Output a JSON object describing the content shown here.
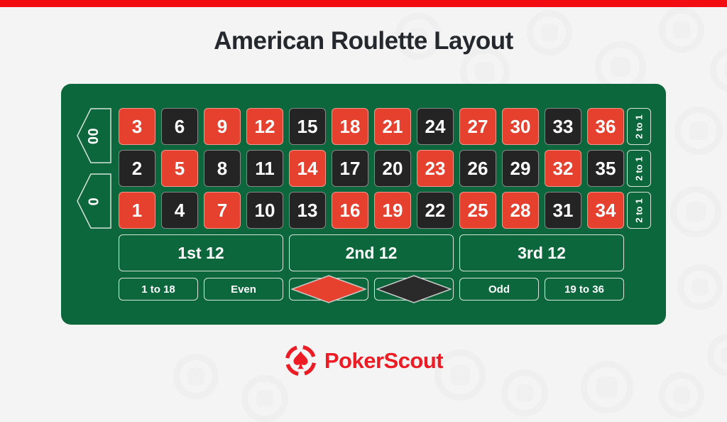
{
  "page": {
    "title": "American Roulette Layout",
    "accent_color": "#f20d12",
    "background_color": "#f4f4f4"
  },
  "table": {
    "felt_color": "#0d673c",
    "red_color": "#e5412e",
    "black_color": "#242424",
    "zero_pockets": [
      {
        "label": "00"
      },
      {
        "label": "0"
      }
    ],
    "grid": {
      "rows": [
        [
          {
            "n": "3",
            "c": "red"
          },
          {
            "n": "6",
            "c": "black"
          },
          {
            "n": "9",
            "c": "red"
          },
          {
            "n": "12",
            "c": "red"
          },
          {
            "n": "15",
            "c": "black"
          },
          {
            "n": "18",
            "c": "red"
          },
          {
            "n": "21",
            "c": "red"
          },
          {
            "n": "24",
            "c": "black"
          },
          {
            "n": "27",
            "c": "red"
          },
          {
            "n": "30",
            "c": "red"
          },
          {
            "n": "33",
            "c": "black"
          },
          {
            "n": "36",
            "c": "red"
          }
        ],
        [
          {
            "n": "2",
            "c": "black"
          },
          {
            "n": "5",
            "c": "red"
          },
          {
            "n": "8",
            "c": "black"
          },
          {
            "n": "11",
            "c": "black"
          },
          {
            "n": "14",
            "c": "red"
          },
          {
            "n": "17",
            "c": "black"
          },
          {
            "n": "20",
            "c": "black"
          },
          {
            "n": "23",
            "c": "red"
          },
          {
            "n": "26",
            "c": "black"
          },
          {
            "n": "29",
            "c": "black"
          },
          {
            "n": "32",
            "c": "red"
          },
          {
            "n": "35",
            "c": "black"
          }
        ],
        [
          {
            "n": "1",
            "c": "red"
          },
          {
            "n": "4",
            "c": "black"
          },
          {
            "n": "7",
            "c": "red"
          },
          {
            "n": "10",
            "c": "black"
          },
          {
            "n": "13",
            "c": "black"
          },
          {
            "n": "16",
            "c": "red"
          },
          {
            "n": "19",
            "c": "red"
          },
          {
            "n": "22",
            "c": "black"
          },
          {
            "n": "25",
            "c": "red"
          },
          {
            "n": "28",
            "c": "red"
          },
          {
            "n": "31",
            "c": "black"
          },
          {
            "n": "34",
            "c": "red"
          }
        ]
      ]
    },
    "column_bets": [
      "2 to 1",
      "2 to 1",
      "2 to 1"
    ],
    "dozens": [
      "1st 12",
      "2nd 12",
      "3rd 12"
    ],
    "outside_bets": [
      {
        "type": "text",
        "label": "1 to 18"
      },
      {
        "type": "text",
        "label": "Even"
      },
      {
        "type": "diamond",
        "color": "red",
        "icon": "red-diamond-icon"
      },
      {
        "type": "diamond",
        "color": "black",
        "icon": "black-diamond-icon"
      },
      {
        "type": "text",
        "label": "Odd"
      },
      {
        "type": "text",
        "label": "19 to 36"
      }
    ]
  },
  "footer": {
    "logo_text": "PokerScout",
    "logo_icon": "spade-target-icon",
    "logo_color": "#ed1c24"
  }
}
